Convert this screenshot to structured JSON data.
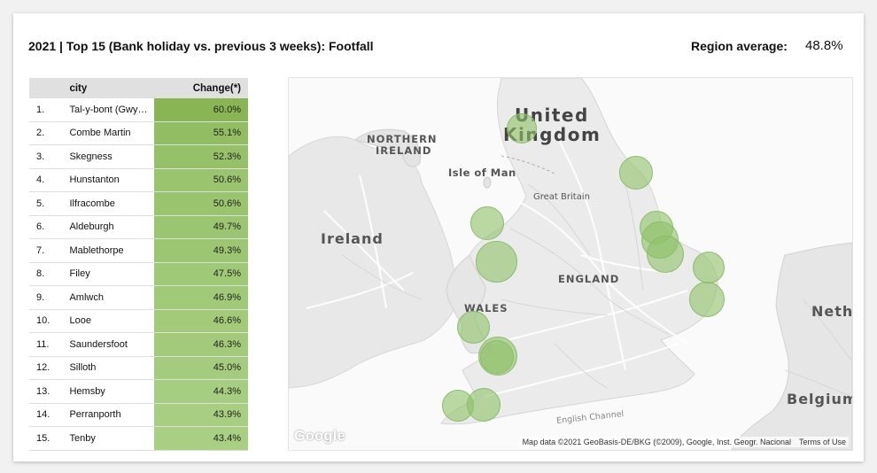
{
  "header": {
    "title": "2021 | Top 15 (Bank holiday vs. previous 3 weeks): Footfall",
    "region_average_label": "Region average:",
    "region_average_value": "48.8%"
  },
  "table": {
    "columns": [
      "",
      "city",
      "Change(*)"
    ],
    "rows": [
      {
        "rank": "1.",
        "city": "Tal-y-bont (Gwy…",
        "change": "60.0%",
        "value": 60.0
      },
      {
        "rank": "2.",
        "city": "Combe Martin",
        "change": "55.1%",
        "value": 55.1
      },
      {
        "rank": "3.",
        "city": "Skegness",
        "change": "52.3%",
        "value": 52.3
      },
      {
        "rank": "4.",
        "city": "Hunstanton",
        "change": "50.6%",
        "value": 50.6
      },
      {
        "rank": "5.",
        "city": "Ilfracombe",
        "change": "50.6%",
        "value": 50.6
      },
      {
        "rank": "6.",
        "city": "Aldeburgh",
        "change": "49.7%",
        "value": 49.7
      },
      {
        "rank": "7.",
        "city": "Mablethorpe",
        "change": "49.3%",
        "value": 49.3
      },
      {
        "rank": "8.",
        "city": "Filey",
        "change": "47.5%",
        "value": 47.5
      },
      {
        "rank": "9.",
        "city": "Amlwch",
        "change": "46.9%",
        "value": 46.9
      },
      {
        "rank": "10.",
        "city": "Looe",
        "change": "46.6%",
        "value": 46.6
      },
      {
        "rank": "11.",
        "city": "Saundersfoot",
        "change": "46.3%",
        "value": 46.3
      },
      {
        "rank": "12.",
        "city": "Silloth",
        "change": "45.0%",
        "value": 45.0
      },
      {
        "rank": "13.",
        "city": "Hemsby",
        "change": "44.3%",
        "value": 44.3
      },
      {
        "rank": "14.",
        "city": "Perranporth",
        "change": "43.9%",
        "value": 43.9
      },
      {
        "rank": "15.",
        "city": "Tenby",
        "change": "43.4%",
        "value": 43.4
      }
    ],
    "heat_colors": {
      "high": "#89b554",
      "low": "#a8cf82"
    }
  },
  "map": {
    "labels": {
      "united": "United",
      "kingdom": "Kingdom",
      "northern": "NORTHERN",
      "ireland_ni": "IRELAND",
      "isle_of_man": "Isle of Man",
      "great_britain": "Great Britain",
      "ireland": "Ireland",
      "england": "ENGLAND",
      "wales": "WALES",
      "netherlands": "Nethe",
      "belgium": "Belgium",
      "english_channel": "English Channel"
    },
    "google_logo": "Google",
    "attribution": "Map data ©2021 GeoBasis-DE/BKG (©2009), Google, Inst. Geogr. Nacional",
    "terms": "Terms of Use",
    "bubble_color": "#8dc168"
  }
}
